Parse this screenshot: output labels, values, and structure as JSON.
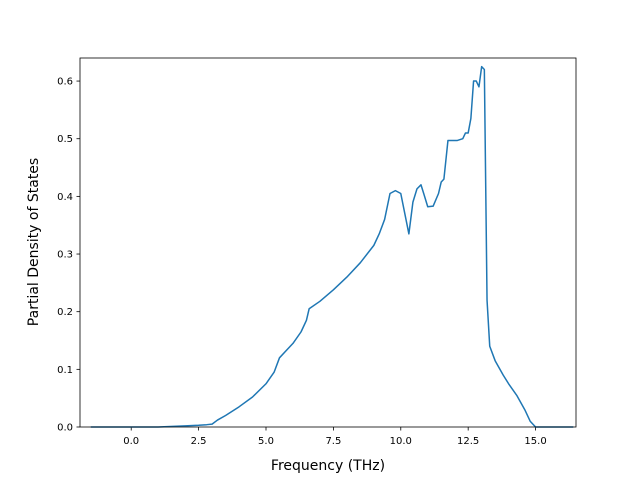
{
  "chart_data": {
    "type": "line",
    "xlabel": "Frequency (THz)",
    "ylabel": "Partial Density of States",
    "xlim": [
      -1.9,
      16.5
    ],
    "ylim": [
      0.0,
      0.64
    ],
    "grid": false,
    "x_ticks": [
      0.0,
      2.5,
      5.0,
      7.5,
      10.0,
      12.5,
      15.0
    ],
    "x_tick_labels": [
      "0.0",
      "2.5",
      "5.0",
      "7.5",
      "10.0",
      "12.5",
      "15.0"
    ],
    "y_ticks": [
      0.0,
      0.1,
      0.2,
      0.3,
      0.4,
      0.5,
      0.6
    ],
    "y_tick_labels": [
      "0.0",
      "0.1",
      "0.2",
      "0.3",
      "0.4",
      "0.5",
      "0.6"
    ],
    "line_color": "#1f77b4",
    "series": [
      {
        "x": [
          -1.5,
          0.0,
          1.0,
          2.0,
          2.5,
          2.8,
          3.0,
          3.2,
          3.5,
          4.0,
          4.5,
          5.0,
          5.3,
          5.5,
          5.8,
          6.0,
          6.3,
          6.5,
          6.6,
          7.0,
          7.5,
          8.0,
          8.5,
          9.0,
          9.2,
          9.4,
          9.6,
          9.8,
          10.0,
          10.15,
          10.3,
          10.45,
          10.6,
          10.75,
          10.85,
          11.0,
          11.2,
          11.4,
          11.5,
          11.6,
          11.75,
          11.9,
          12.1,
          12.3,
          12.4,
          12.5,
          12.6,
          12.7,
          12.8,
          12.9,
          13.0,
          13.1,
          13.2,
          13.3,
          13.5,
          13.8,
          14.0,
          14.3,
          14.6,
          14.8,
          15.0,
          15.2,
          15.5,
          16.0,
          16.4
        ],
        "y": [
          0.0,
          0.0,
          0.0,
          0.002,
          0.003,
          0.004,
          0.005,
          0.012,
          0.02,
          0.035,
          0.052,
          0.075,
          0.095,
          0.12,
          0.135,
          0.145,
          0.165,
          0.185,
          0.205,
          0.218,
          0.238,
          0.26,
          0.285,
          0.315,
          0.335,
          0.36,
          0.405,
          0.41,
          0.405,
          0.37,
          0.335,
          0.39,
          0.413,
          0.42,
          0.405,
          0.382,
          0.383,
          0.405,
          0.425,
          0.43,
          0.497,
          0.497,
          0.497,
          0.5,
          0.51,
          0.51,
          0.535,
          0.6,
          0.6,
          0.59,
          0.625,
          0.62,
          0.22,
          0.14,
          0.115,
          0.09,
          0.075,
          0.055,
          0.03,
          0.01,
          0.0,
          0.0,
          0.0,
          0.0,
          0.0
        ]
      }
    ]
  }
}
